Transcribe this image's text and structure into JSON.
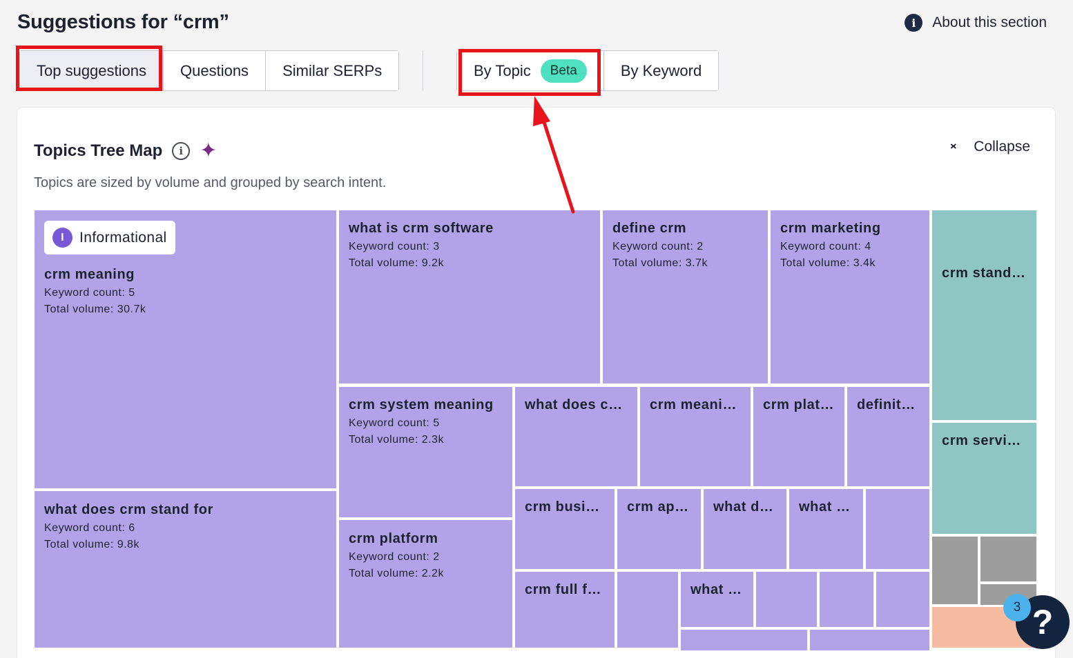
{
  "header": {
    "title": "Suggestions for “crm”",
    "about_label": "About this section",
    "about_icon": "info-icon"
  },
  "tabs_left": [
    {
      "label": "Top suggestions",
      "active": true
    },
    {
      "label": "Questions",
      "active": false
    },
    {
      "label": "Similar SERPs",
      "active": false
    }
  ],
  "tabs_right": [
    {
      "label": "By Topic",
      "badge": "Beta",
      "active": false
    },
    {
      "label": "By Keyword",
      "active": false
    }
  ],
  "card": {
    "title": "Topics Tree Map",
    "subtitle": "Topics are sized by volume and grouped by search intent.",
    "collapse_label": "Collapse"
  },
  "intent_label": "Informational",
  "intent_badge": "I",
  "colors": {
    "informational": "#b2a2e8",
    "teal_group": "#8fc6c3",
    "gray_group": "#9d9d9d",
    "peach_group": "#f6bca1",
    "highlight": "#e8141b",
    "beta": "#4ee0bf"
  },
  "topics": [
    {
      "name": "crm meaning",
      "keyword_count": "Keyword count: 5",
      "total_volume": "Total volume: 30.7k"
    },
    {
      "name": "what does crm stand for",
      "keyword_count": "Keyword count: 6",
      "total_volume": "Total volume: 9.8k"
    },
    {
      "name": "what is crm software",
      "keyword_count": "Keyword count: 3",
      "total_volume": "Total volume: 9.2k"
    },
    {
      "name": "define crm",
      "keyword_count": "Keyword count: 2",
      "total_volume": "Total volume: 3.7k"
    },
    {
      "name": "crm marketing",
      "keyword_count": "Keyword count: 4",
      "total_volume": "Total volume: 3.4k"
    },
    {
      "name": "crm system meaning",
      "keyword_count": "Keyword count: 5",
      "total_volume": "Total volume: 2.3k"
    },
    {
      "name": "crm platform",
      "keyword_count": "Keyword count: 2",
      "total_volume": "Total volume: 2.2k"
    }
  ],
  "truncated_topics": [
    "what does cr…",
    "crm meani…",
    "crm plat…",
    "definit…",
    "crm busi…",
    "crm ap…",
    "what d…",
    "what …",
    "crm full f…",
    "what …",
    "crm stand…",
    "crm servi…"
  ],
  "help": {
    "icon": "question-icon",
    "count": "3"
  }
}
